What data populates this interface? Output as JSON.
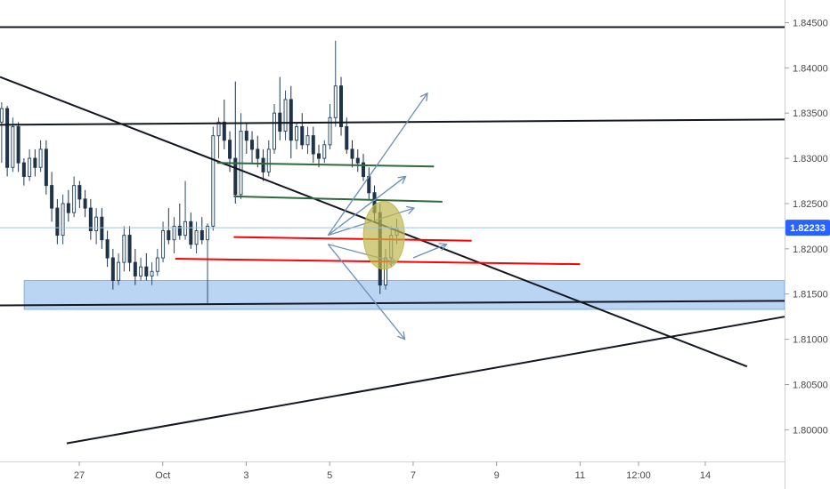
{
  "chart_data": {
    "type": "candlestick",
    "instrument_view": "price chart with drawn trend lines and zones",
    "y_axis": {
      "ylim": [
        1.7965,
        1.8475
      ],
      "ticks": [
        "1.84500",
        "1.84000",
        "1.83500",
        "1.83000",
        "1.82500",
        "1.82000",
        "1.81500",
        "1.81000",
        "1.80500",
        "1.80000"
      ],
      "current_price_label": "1.82233",
      "current_price": 1.82233
    },
    "x_axis": {
      "xlim": [
        0,
        94
      ],
      "ticks": [
        {
          "label": "27",
          "x": 9.5
        },
        {
          "label": "Oct",
          "x": 19.5
        },
        {
          "label": "3",
          "x": 29.5
        },
        {
          "label": "5",
          "x": 39.5
        },
        {
          "label": "7",
          "x": 49.5
        },
        {
          "label": "9",
          "x": 59.5
        },
        {
          "label": "11",
          "x": 69.5
        },
        {
          "label": "12:00",
          "x": 76.5
        },
        {
          "label": "14",
          "x": 84.5
        }
      ]
    },
    "candles": [
      [
        1.834,
        1.8362,
        1.8295,
        1.8355
      ],
      [
        1.8355,
        1.8358,
        1.828,
        1.829
      ],
      [
        1.829,
        1.8345,
        1.8285,
        1.8335
      ],
      [
        1.8335,
        1.834,
        1.8285,
        1.8295
      ],
      [
        1.8295,
        1.83,
        1.827,
        1.828
      ],
      [
        1.828,
        1.831,
        1.8275,
        1.83
      ],
      [
        1.83,
        1.831,
        1.828,
        1.829
      ],
      [
        1.829,
        1.832,
        1.8285,
        1.831
      ],
      [
        1.831,
        1.832,
        1.826,
        1.827
      ],
      [
        1.827,
        1.8285,
        1.823,
        1.8245
      ],
      [
        1.8245,
        1.8255,
        1.8205,
        1.8215
      ],
      [
        1.8215,
        1.826,
        1.8205,
        1.825
      ],
      [
        1.825,
        1.8265,
        1.823,
        1.824
      ],
      [
        1.824,
        1.828,
        1.8235,
        1.827
      ],
      [
        1.827,
        1.8275,
        1.8245,
        1.8255
      ],
      [
        1.8255,
        1.8265,
        1.8235,
        1.8245
      ],
      [
        1.8245,
        1.8255,
        1.821,
        1.822
      ],
      [
        1.822,
        1.8245,
        1.8205,
        1.8235
      ],
      [
        1.8235,
        1.8245,
        1.82,
        1.821
      ],
      [
        1.821,
        1.822,
        1.818,
        1.819
      ],
      [
        1.819,
        1.82,
        1.8155,
        1.8165
      ],
      [
        1.8165,
        1.8195,
        1.816,
        1.8185
      ],
      [
        1.8185,
        1.8225,
        1.8175,
        1.8215
      ],
      [
        1.8215,
        1.8225,
        1.8175,
        1.8185
      ],
      [
        1.8185,
        1.82,
        1.816,
        1.817
      ],
      [
        1.817,
        1.819,
        1.8165,
        1.818
      ],
      [
        1.818,
        1.8195,
        1.8165,
        1.817
      ],
      [
        1.817,
        1.8185,
        1.816,
        1.8175
      ],
      [
        1.8175,
        1.82,
        1.817,
        1.819
      ],
      [
        1.819,
        1.823,
        1.8185,
        1.822
      ],
      [
        1.822,
        1.8245,
        1.8205,
        1.821
      ],
      [
        1.821,
        1.8235,
        1.8195,
        1.8225
      ],
      [
        1.8225,
        1.825,
        1.821,
        1.8215
      ],
      [
        1.8215,
        1.8275,
        1.821,
        1.823
      ],
      [
        1.823,
        1.824,
        1.82,
        1.8205
      ],
      [
        1.8205,
        1.823,
        1.8195,
        1.822
      ],
      [
        1.822,
        1.8235,
        1.8205,
        1.821
      ],
      [
        1.821,
        1.8228,
        1.814,
        1.8225
      ],
      [
        1.8225,
        1.8335,
        1.822,
        1.8325
      ],
      [
        1.8325,
        1.8345,
        1.83,
        1.834
      ],
      [
        1.834,
        1.8365,
        1.831,
        1.832
      ],
      [
        1.832,
        1.833,
        1.8285,
        1.83
      ],
      [
        1.83,
        1.8385,
        1.825,
        1.826
      ],
      [
        1.826,
        1.835,
        1.8255,
        1.833
      ],
      [
        1.833,
        1.834,
        1.8305,
        1.832
      ],
      [
        1.832,
        1.833,
        1.8295,
        1.831
      ],
      [
        1.831,
        1.8325,
        1.829,
        1.83
      ],
      [
        1.83,
        1.831,
        1.8275,
        1.8285
      ],
      [
        1.8285,
        1.832,
        1.828,
        1.831
      ],
      [
        1.831,
        1.836,
        1.8305,
        1.835
      ],
      [
        1.835,
        1.839,
        1.832,
        1.833
      ],
      [
        1.833,
        1.8375,
        1.832,
        1.8365
      ],
      [
        1.8365,
        1.838,
        1.83,
        1.832
      ],
      [
        1.832,
        1.834,
        1.831,
        1.8335
      ],
      [
        1.8335,
        1.835,
        1.831,
        1.8315
      ],
      [
        1.8315,
        1.8335,
        1.8305,
        1.8325
      ],
      [
        1.8325,
        1.8335,
        1.8295,
        1.8305
      ],
      [
        1.8305,
        1.8315,
        1.829,
        1.83
      ],
      [
        1.83,
        1.832,
        1.8295,
        1.8315
      ],
      [
        1.8315,
        1.836,
        1.831,
        1.8345
      ],
      [
        1.8345,
        1.843,
        1.8335,
        1.838
      ],
      [
        1.838,
        1.839,
        1.8325,
        1.8335
      ],
      [
        1.8335,
        1.8345,
        1.8305,
        1.831
      ],
      [
        1.831,
        1.832,
        1.829,
        1.83
      ],
      [
        1.83,
        1.831,
        1.8285,
        1.8295
      ],
      [
        1.8295,
        1.8305,
        1.8275,
        1.828
      ],
      [
        1.828,
        1.829,
        1.8255,
        1.8262
      ],
      [
        1.8262,
        1.827,
        1.823,
        1.824
      ],
      [
        1.824,
        1.825,
        1.815,
        1.816
      ],
      [
        1.816,
        1.82,
        1.8155,
        1.819
      ],
      [
        1.819,
        1.8225,
        1.818,
        1.8215
      ],
      [
        1.8215,
        1.8233,
        1.8205,
        1.8223
      ]
    ],
    "drawn_lines": [
      {
        "kind": "horizontal",
        "color": "#131722",
        "from": [
          0,
          1.8445
        ],
        "to": [
          94,
          1.8445
        ]
      },
      {
        "kind": "horizontal",
        "color": "#131722",
        "from": [
          0,
          1.8337
        ],
        "to": [
          94,
          1.8343
        ]
      },
      {
        "kind": "horizontal",
        "color": "#131722",
        "from": [
          0,
          1.81375
        ],
        "to": [
          94,
          1.81425
        ]
      },
      {
        "kind": "trend",
        "color": "#131722",
        "from": [
          0,
          1.839
        ],
        "to": [
          89.5,
          1.807
        ]
      },
      {
        "kind": "trend",
        "color": "#131722",
        "from": [
          8,
          1.7985
        ],
        "to": [
          94,
          1.8125
        ]
      },
      {
        "kind": "horizontal",
        "color": "#2f6b3a",
        "from": [
          26,
          1.8295
        ],
        "to": [
          52,
          1.8291
        ]
      },
      {
        "kind": "horizontal",
        "color": "#2f6b3a",
        "from": [
          28,
          1.8258
        ],
        "to": [
          53,
          1.8252
        ]
      },
      {
        "kind": "horizontal",
        "color": "#ff0000",
        "from": [
          28,
          1.8213
        ],
        "to": [
          56.5,
          1.8209
        ]
      },
      {
        "kind": "horizontal",
        "color": "#ff0000",
        "from": [
          21,
          1.8189
        ],
        "to": [
          69.5,
          1.8183
        ]
      }
    ],
    "zone": {
      "color": "#4a90e2",
      "from": [
        3,
        1.8165
      ],
      "to": [
        94,
        1.8133
      ]
    },
    "projection_arrows": [
      {
        "from": [
          39.3,
          1.8215
        ],
        "to": [
          51.2,
          1.8372
        ]
      },
      {
        "from": [
          39.3,
          1.8215
        ],
        "to": [
          48.6,
          1.828
        ]
      },
      {
        "from": [
          39.3,
          1.8215
        ],
        "to": [
          49.6,
          1.8245
        ]
      },
      {
        "from": [
          39.3,
          1.8205
        ],
        "to": [
          47.5,
          1.8185
        ]
      },
      {
        "from": [
          49.5,
          1.819
        ],
        "to": [
          53.5,
          1.8205
        ]
      },
      {
        "from": [
          39.3,
          1.8205
        ],
        "to": [
          48.5,
          1.81
        ]
      }
    ],
    "highlight_ellipse": {
      "color": "#c0b850",
      "center": [
        46.0,
        1.8215
      ]
    },
    "crosshair_price": 1.82233
  }
}
